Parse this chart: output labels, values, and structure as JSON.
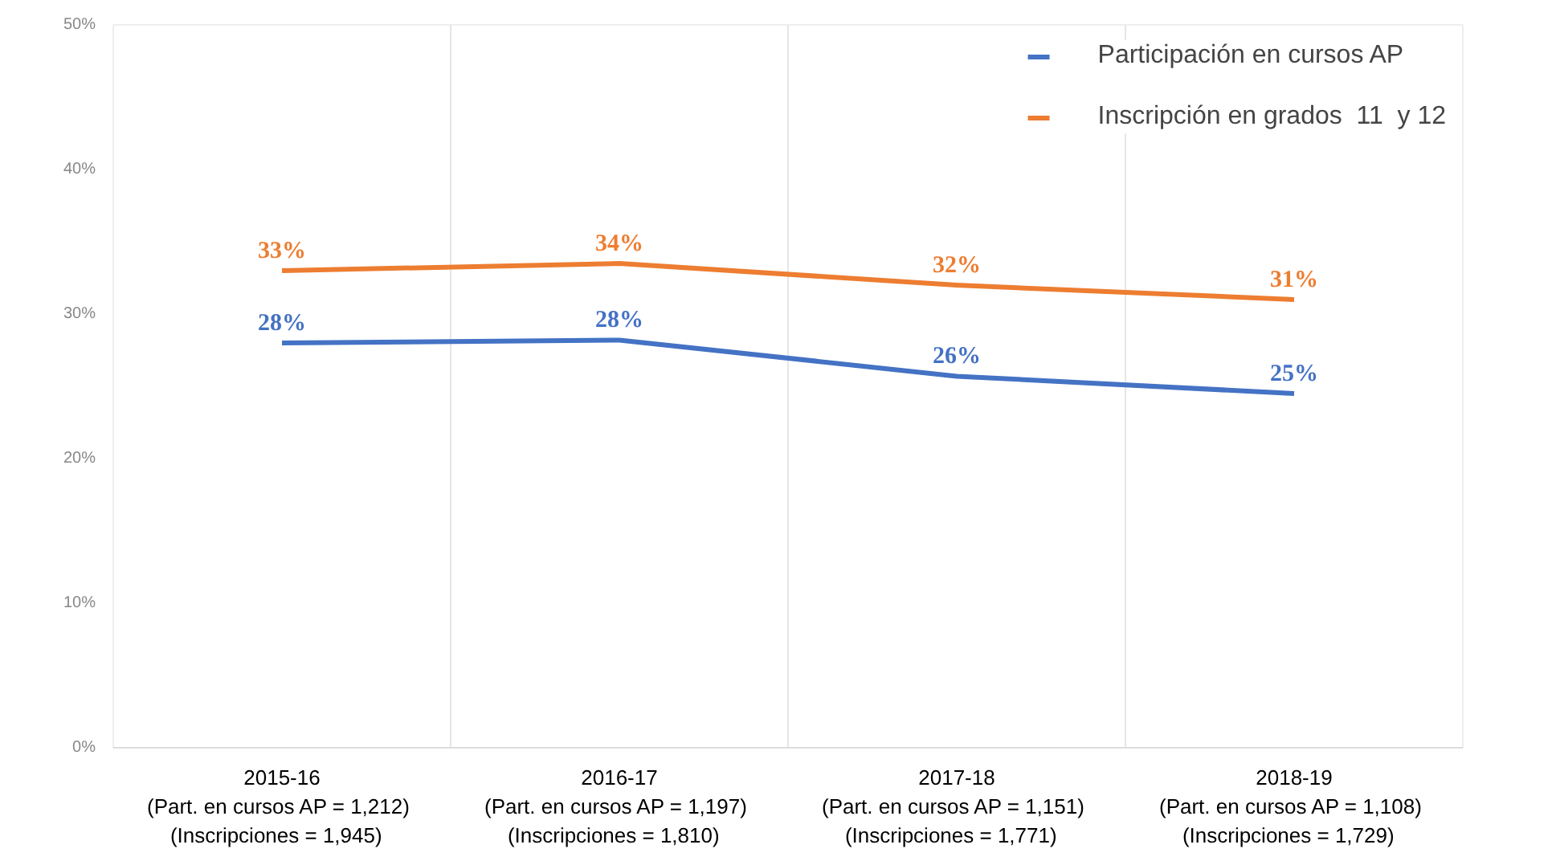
{
  "chart_data": {
    "type": "line",
    "categories": [
      "2015-16\n(Part. en cursos  AP = 1,212)\n(Inscripciones   = 1,945)",
      "2016-17\n(Part. en cursos  AP = 1,197)\n(Inscripciones   = 1,810)",
      "2017-18\n(Part. en cursos  AP = 1,151)\n(Inscripciones   = 1,771)",
      "2018-19\n(Part. en cursos  AP = 1,108)\n(Inscripciones   = 1,729)"
    ],
    "series": [
      {
        "name": "Participación en cursos AP",
        "color": "#4472c4",
        "values": [
          28,
          28.2,
          25.7,
          24.5
        ],
        "value_labels": [
          "28%",
          "28%",
          "26%",
          "25%"
        ]
      },
      {
        "name": "Inscripción en grados  11  y 12",
        "color": "#ed7d31",
        "values": [
          33,
          33.5,
          32,
          31
        ],
        "value_labels": [
          "33%",
          "34%",
          "32%",
          "31%"
        ]
      }
    ],
    "ylim": [
      0,
      50
    ],
    "yticks": [
      {
        "value": 0,
        "label": "0%"
      },
      {
        "value": 10,
        "label": "10%"
      },
      {
        "value": 20,
        "label": "20%"
      },
      {
        "value": 30,
        "label": "30%"
      },
      {
        "value": 40,
        "label": "40%"
      },
      {
        "value": 50,
        "label": "50%"
      }
    ],
    "grid": "x",
    "legend": "top right",
    "line_style": "solid"
  }
}
